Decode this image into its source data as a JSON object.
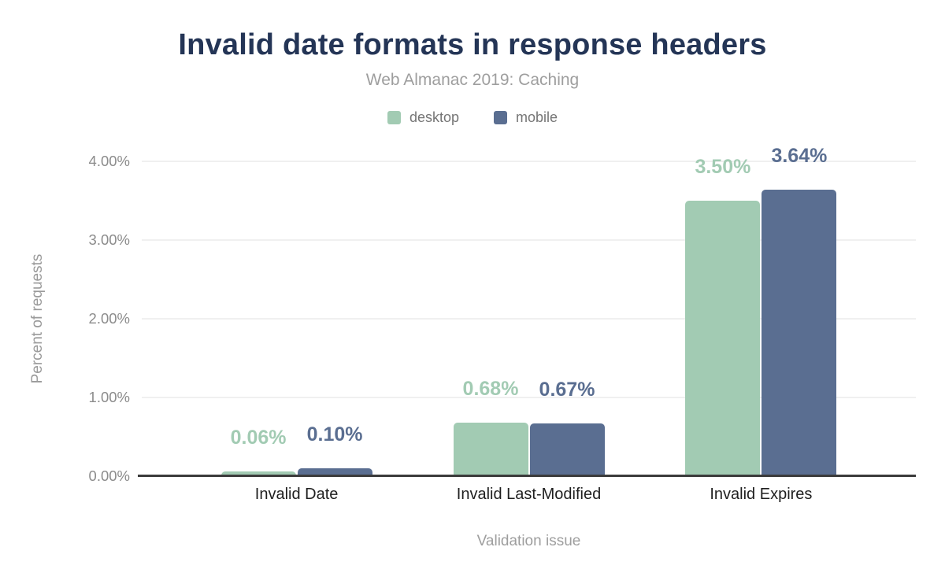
{
  "chart_data": {
    "type": "bar",
    "title": "Invalid date formats in response headers",
    "subtitle": "Web Almanac 2019: Caching",
    "categories": [
      "Invalid Date",
      "Invalid Last-Modified",
      "Invalid Expires"
    ],
    "series": [
      {
        "name": "desktop",
        "color": "#a2cbb3",
        "values": [
          0.06,
          0.68,
          3.5
        ]
      },
      {
        "name": "mobile",
        "color": "#5a6e91",
        "values": [
          0.1,
          0.67,
          3.64
        ]
      }
    ],
    "data_labels": [
      [
        "0.06%",
        "0.68%",
        "3.50%"
      ],
      [
        "0.10%",
        "0.67%",
        "3.64%"
      ]
    ],
    "xlabel": "Validation issue",
    "ylabel": "Percent of requests",
    "ylim": [
      0,
      4
    ],
    "yticks": [
      "0.00%",
      "1.00%",
      "2.00%",
      "3.00%",
      "4.00%"
    ],
    "grid": true,
    "legend_position": "top",
    "colors": {
      "title": "#243556",
      "subtitle": "#9e9e9e",
      "legend_text": "#757575",
      "tick_text": "#8c8c8c",
      "category_text": "#1f1f1f",
      "axis_title_text": "#9a9a9a",
      "gridline": "#f0f0f0",
      "baseline": "#3b3b3b",
      "background": "#ffffff"
    }
  }
}
